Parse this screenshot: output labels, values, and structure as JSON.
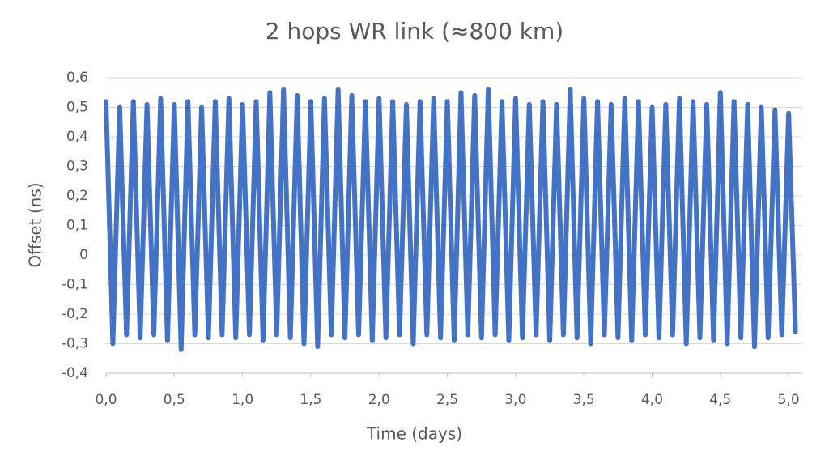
{
  "chart_data": {
    "type": "line",
    "title": "2 hops WR link (≈800 km)",
    "x_label": "Time (days)",
    "y_label": "Offset (ns)",
    "x": [
      0,
      0.05,
      0.1,
      0.15,
      0.2,
      0.25,
      0.3,
      0.35,
      0.4,
      0.45,
      0.5,
      0.55,
      0.6,
      0.65,
      0.7,
      0.75,
      0.8,
      0.85,
      0.9,
      0.95,
      1,
      1.05,
      1.1,
      1.15,
      1.2,
      1.25,
      1.3,
      1.35,
      1.4,
      1.45,
      1.5,
      1.55,
      1.6,
      1.65,
      1.7,
      1.75,
      1.8,
      1.85,
      1.9,
      1.95,
      2,
      2.05,
      2.1,
      2.15,
      2.2,
      2.25,
      2.3,
      2.35,
      2.4,
      2.45,
      2.5,
      2.55,
      2.6,
      2.65,
      2.7,
      2.75,
      2.8,
      2.85,
      2.9,
      2.95,
      3,
      3.05,
      3.1,
      3.15,
      3.2,
      3.25,
      3.3,
      3.35,
      3.4,
      3.45,
      3.5,
      3.55,
      3.6,
      3.65,
      3.7,
      3.75,
      3.8,
      3.85,
      3.9,
      3.95,
      4,
      4.05,
      4.1,
      4.15,
      4.2,
      4.25,
      4.3,
      4.35,
      4.4,
      4.45,
      4.5,
      4.55,
      4.6,
      4.65,
      4.7,
      4.75,
      4.8,
      4.85,
      4.9,
      4.95,
      5,
      5.05
    ],
    "series": [
      {
        "color": "#4472c4",
        "values": [
          0.52,
          -0.3,
          0.5,
          -0.27,
          0.52,
          -0.28,
          0.51,
          -0.27,
          0.53,
          -0.29,
          0.51,
          -0.32,
          0.52,
          -0.27,
          0.5,
          -0.28,
          0.52,
          -0.27,
          0.53,
          -0.28,
          0.51,
          -0.27,
          0.52,
          -0.29,
          0.55,
          -0.27,
          0.56,
          -0.28,
          0.54,
          -0.3,
          0.52,
          -0.31,
          0.53,
          -0.27,
          0.56,
          -0.28,
          0.54,
          -0.27,
          0.52,
          -0.29,
          0.53,
          -0.28,
          0.52,
          -0.27,
          0.51,
          -0.3,
          0.52,
          -0.27,
          0.53,
          -0.28,
          0.52,
          -0.29,
          0.55,
          -0.27,
          0.54,
          -0.28,
          0.56,
          -0.27,
          0.52,
          -0.29,
          0.53,
          -0.28,
          0.51,
          -0.27,
          0.52,
          -0.29,
          0.51,
          -0.27,
          0.56,
          -0.28,
          0.53,
          -0.3,
          0.52,
          -0.27,
          0.51,
          -0.28,
          0.53,
          -0.29,
          0.52,
          -0.27,
          0.5,
          -0.28,
          0.51,
          -0.27,
          0.53,
          -0.3,
          0.52,
          -0.28,
          0.51,
          -0.29,
          0.55,
          -0.3,
          0.52,
          -0.28,
          0.51,
          -0.31,
          0.5,
          -0.28,
          0.49,
          -0.27,
          0.48,
          -0.26
        ]
      }
    ],
    "xlim": [
      0,
      5.1
    ],
    "xticks": [
      {
        "value": 0,
        "label": "0,0"
      },
      {
        "value": 0.5,
        "label": "0,5"
      },
      {
        "value": 1,
        "label": "1,0"
      },
      {
        "value": 1.5,
        "label": "1,5"
      },
      {
        "value": 2,
        "label": "2,0"
      },
      {
        "value": 2.5,
        "label": "2,5"
      },
      {
        "value": 3,
        "label": "3,0"
      },
      {
        "value": 3.5,
        "label": "3,5"
      },
      {
        "value": 4,
        "label": "4,0"
      },
      {
        "value": 4.5,
        "label": "4,5"
      },
      {
        "value": 5,
        "label": "5,0"
      }
    ],
    "ylim": [
      -0.4,
      0.6
    ],
    "yticks": [
      {
        "value": -0.4,
        "label": "-0,4"
      },
      {
        "value": -0.3,
        "label": "-0,3"
      },
      {
        "value": -0.2,
        "label": "-0,2"
      },
      {
        "value": -0.1,
        "label": "-0,1"
      },
      0,
      {
        "value": 0.1,
        "label": "0,1"
      },
      {
        "value": 0.2,
        "label": "0,2"
      },
      {
        "value": 0.3,
        "label": "0,3"
      },
      {
        "value": 0.4,
        "label": "0,4"
      },
      {
        "value": 0.5,
        "label": "0,5"
      },
      {
        "value": 0.6,
        "label": "0,6"
      }
    ],
    "grid": true
  }
}
